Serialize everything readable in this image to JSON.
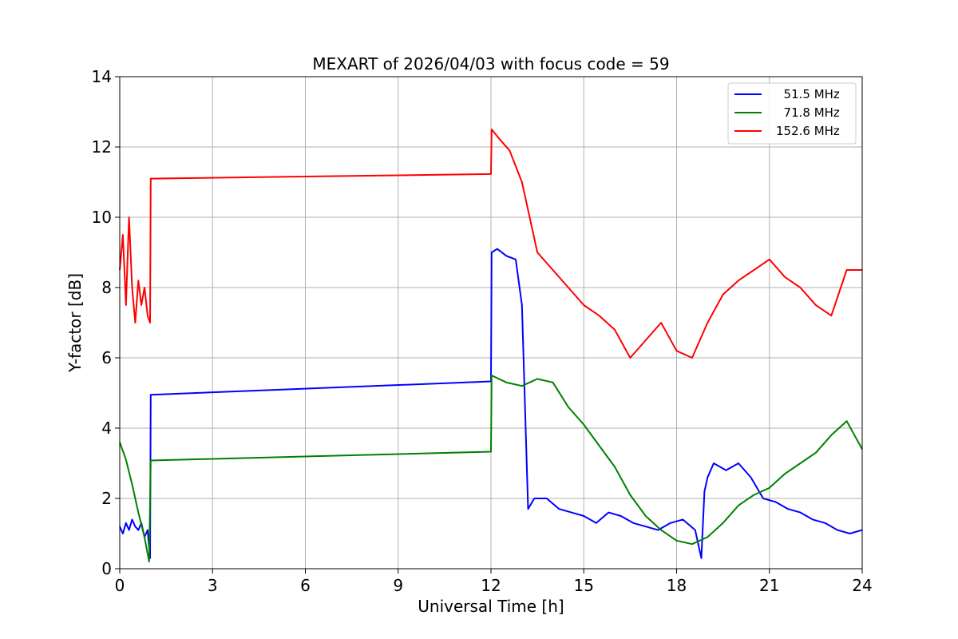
{
  "chart_data": {
    "type": "line",
    "title": "MEXART of 2026/04/03 with focus code = 59",
    "xlabel": "Universal Time [h]",
    "ylabel": "Y-factor [dB]",
    "xlim": [
      0,
      24
    ],
    "ylim": [
      0,
      14
    ],
    "xticks": [
      0,
      3,
      6,
      9,
      12,
      15,
      18,
      21,
      24
    ],
    "yticks": [
      0,
      2,
      4,
      6,
      8,
      10,
      12,
      14
    ],
    "grid": true,
    "legend_position": "top-right",
    "series": [
      {
        "name": "  51.5 MHz",
        "color": "#0000ff",
        "x": [
          0,
          0.1,
          0.2,
          0.3,
          0.4,
          0.5,
          0.6,
          0.7,
          0.8,
          0.9,
          0.98,
          1.0,
          12.0,
          12.02,
          12.2,
          12.5,
          12.8,
          13.0,
          13.2,
          13.4,
          13.8,
          14.2,
          14.6,
          15.0,
          15.4,
          15.8,
          16.2,
          16.6,
          17.0,
          17.4,
          17.8,
          18.2,
          18.6,
          18.8,
          18.9,
          19.0,
          19.2,
          19.6,
          20.0,
          20.4,
          20.8,
          21.2,
          21.6,
          22.0,
          22.4,
          22.8,
          23.2,
          23.6,
          24.0
        ],
        "y": [
          1.2,
          1.0,
          1.3,
          1.1,
          1.4,
          1.2,
          1.1,
          1.3,
          0.9,
          1.1,
          0.3,
          4.95,
          5.33,
          9.0,
          9.1,
          8.9,
          8.8,
          7.5,
          1.7,
          2.0,
          2.0,
          1.7,
          1.6,
          1.5,
          1.3,
          1.6,
          1.5,
          1.3,
          1.2,
          1.1,
          1.3,
          1.4,
          1.1,
          0.3,
          2.2,
          2.6,
          3.0,
          2.8,
          3.0,
          2.6,
          2.0,
          1.9,
          1.7,
          1.6,
          1.4,
          1.3,
          1.1,
          1.0,
          1.1
        ]
      },
      {
        "name": "  71.8 MHz",
        "color": "#008000",
        "x": [
          0,
          0.2,
          0.4,
          0.6,
          0.8,
          0.95,
          1.0,
          12.0,
          12.02,
          12.5,
          13.0,
          13.5,
          14.0,
          14.5,
          15.0,
          15.5,
          16.0,
          16.5,
          17.0,
          17.5,
          18.0,
          18.5,
          19.0,
          19.5,
          20.0,
          20.5,
          21.0,
          21.5,
          22.0,
          22.5,
          23.0,
          23.5,
          24.0
        ],
        "y": [
          3.6,
          3.1,
          2.4,
          1.6,
          0.9,
          0.2,
          3.08,
          3.33,
          5.5,
          5.3,
          5.2,
          5.4,
          5.3,
          4.6,
          4.1,
          3.5,
          2.9,
          2.1,
          1.5,
          1.1,
          0.8,
          0.7,
          0.9,
          1.3,
          1.8,
          2.1,
          2.3,
          2.7,
          3.0,
          3.3,
          3.8,
          4.2,
          3.4
        ]
      },
      {
        "name": "152.6 MHz",
        "color": "#ff0000",
        "x": [
          0,
          0.1,
          0.2,
          0.3,
          0.4,
          0.5,
          0.6,
          0.7,
          0.8,
          0.9,
          0.98,
          1.0,
          12.0,
          12.02,
          12.3,
          12.6,
          13.0,
          13.5,
          14.0,
          14.5,
          15.0,
          15.5,
          16.0,
          16.5,
          17.0,
          17.5,
          18.0,
          18.5,
          19.0,
          19.5,
          20.0,
          20.5,
          21.0,
          21.5,
          22.0,
          22.5,
          23.0,
          23.5,
          24.0
        ],
        "y": [
          8.5,
          9.5,
          7.5,
          10.0,
          8.0,
          7.0,
          8.2,
          7.5,
          8.0,
          7.2,
          7.0,
          11.1,
          11.23,
          12.5,
          12.2,
          11.9,
          11.0,
          9.0,
          8.5,
          8.0,
          7.5,
          7.2,
          6.8,
          6.0,
          6.5,
          7.0,
          6.2,
          6.0,
          7.0,
          7.8,
          8.2,
          8.5,
          8.8,
          8.3,
          8.0,
          7.5,
          7.2,
          8.5,
          8.5
        ]
      }
    ]
  }
}
